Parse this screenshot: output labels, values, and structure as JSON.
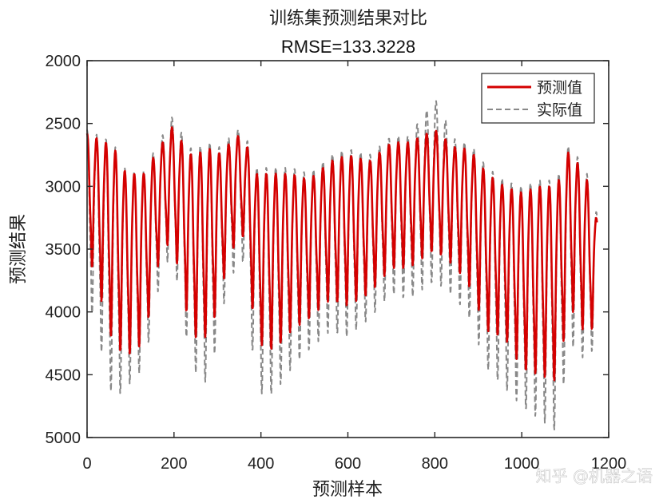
{
  "chart_data": {
    "type": "line",
    "title": "训练集预测结果对比",
    "subtitle": "RMSE=133.3228",
    "xlabel": "预测样本",
    "ylabel": "预测结果",
    "xlim": [
      0,
      1200
    ],
    "ylim": [
      2000,
      5000
    ],
    "y_reversed": true,
    "x_ticks": [
      "0",
      "200",
      "400",
      "600",
      "800",
      "1000",
      "1200"
    ],
    "y_ticks": [
      "2000",
      "2500",
      "3000",
      "3500",
      "4000",
      "4500",
      "5000"
    ],
    "grid": false,
    "legend_position": "top-right",
    "n_points": 1174,
    "cycle_period": 21.7,
    "series": [
      {
        "name": "预测值",
        "color": "#d40000",
        "style": "solid",
        "peak_envelope": [
          [
            0,
            2580
          ],
          [
            60,
            2680
          ],
          [
            90,
            2900
          ],
          [
            130,
            2900
          ],
          [
            165,
            2700
          ],
          [
            195,
            2530
          ],
          [
            240,
            2750
          ],
          [
            285,
            2700
          ],
          [
            300,
            2750
          ],
          [
            345,
            2600
          ],
          [
            360,
            2600
          ],
          [
            390,
            2900
          ],
          [
            430,
            2900
          ],
          [
            470,
            2900
          ],
          [
            510,
            2950
          ],
          [
            560,
            2800
          ],
          [
            600,
            2750
          ],
          [
            650,
            2800
          ],
          [
            700,
            2650
          ],
          [
            740,
            2650
          ],
          [
            800,
            2550
          ],
          [
            850,
            2700
          ],
          [
            880,
            2700
          ],
          [
            920,
            2900
          ],
          [
            960,
            3000
          ],
          [
            1000,
            3050
          ],
          [
            1040,
            3000
          ],
          [
            1080,
            3000
          ],
          [
            1110,
            2700
          ],
          [
            1150,
            2950
          ],
          [
            1175,
            3300
          ]
        ],
        "trough_envelope": [
          [
            0,
            3500
          ],
          [
            60,
            4250
          ],
          [
            90,
            4350
          ],
          [
            130,
            4250
          ],
          [
            165,
            3600
          ],
          [
            195,
            3400
          ],
          [
            240,
            4200
          ],
          [
            285,
            4200
          ],
          [
            300,
            3900
          ],
          [
            345,
            3400
          ],
          [
            360,
            3400
          ],
          [
            390,
            4250
          ],
          [
            430,
            4300
          ],
          [
            470,
            4150
          ],
          [
            510,
            4050
          ],
          [
            560,
            3900
          ],
          [
            600,
            3950
          ],
          [
            650,
            3850
          ],
          [
            700,
            3650
          ],
          [
            740,
            3650
          ],
          [
            800,
            3500
          ],
          [
            850,
            3650
          ],
          [
            880,
            3800
          ],
          [
            920,
            4150
          ],
          [
            960,
            4200
          ],
          [
            1000,
            4450
          ],
          [
            1040,
            4500
          ],
          [
            1080,
            4550
          ],
          [
            1110,
            3950
          ],
          [
            1150,
            4200
          ],
          [
            1175,
            4050
          ]
        ]
      },
      {
        "name": "实际值",
        "color": "#888888",
        "style": "dashed",
        "peak_envelope": [
          [
            0,
            2550
          ],
          [
            60,
            2650
          ],
          [
            90,
            2880
          ],
          [
            130,
            2880
          ],
          [
            165,
            2650
          ],
          [
            195,
            2450
          ],
          [
            240,
            2700
          ],
          [
            285,
            2650
          ],
          [
            300,
            2700
          ],
          [
            345,
            2550
          ],
          [
            360,
            2550
          ],
          [
            390,
            2850
          ],
          [
            430,
            2850
          ],
          [
            470,
            2850
          ],
          [
            510,
            2900
          ],
          [
            560,
            2750
          ],
          [
            600,
            2700
          ],
          [
            650,
            2750
          ],
          [
            700,
            2600
          ],
          [
            740,
            2600
          ],
          [
            800,
            2300
          ],
          [
            850,
            2650
          ],
          [
            880,
            2650
          ],
          [
            920,
            2850
          ],
          [
            960,
            2950
          ],
          [
            1000,
            3000
          ],
          [
            1040,
            2950
          ],
          [
            1080,
            2950
          ],
          [
            1110,
            2650
          ],
          [
            1150,
            2900
          ],
          [
            1175,
            3250
          ]
        ],
        "trough_envelope": [
          [
            0,
            3850
          ],
          [
            60,
            4700
          ],
          [
            90,
            4600
          ],
          [
            130,
            4450
          ],
          [
            165,
            3800
          ],
          [
            195,
            3500
          ],
          [
            240,
            4450
          ],
          [
            285,
            4600
          ],
          [
            300,
            4100
          ],
          [
            345,
            3600
          ],
          [
            360,
            3600
          ],
          [
            390,
            4650
          ],
          [
            430,
            4650
          ],
          [
            470,
            4450
          ],
          [
            510,
            4300
          ],
          [
            560,
            4150
          ],
          [
            600,
            4200
          ],
          [
            650,
            4050
          ],
          [
            700,
            3850
          ],
          [
            740,
            3900
          ],
          [
            800,
            3750
          ],
          [
            850,
            3900
          ],
          [
            880,
            4050
          ],
          [
            920,
            4450
          ],
          [
            960,
            4600
          ],
          [
            1000,
            4750
          ],
          [
            1040,
            4850
          ],
          [
            1080,
            4950
          ],
          [
            1110,
            4250
          ],
          [
            1150,
            4400
          ],
          [
            1175,
            4200
          ]
        ]
      }
    ],
    "watermark": "知乎 @机器之语"
  }
}
